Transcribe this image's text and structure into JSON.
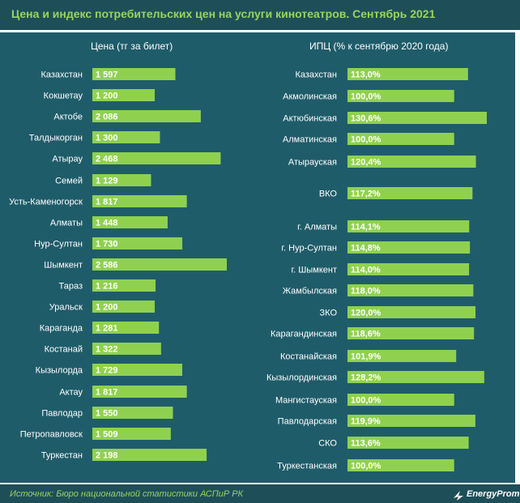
{
  "title": "Цена и индекс потребительских цен на услуги кинотеатров. Сентябрь 2021",
  "source": "Источник: Бюро национальной статистики АСПиР РК",
  "logo_text": "EnergyProm",
  "colors": {
    "background": "#1f5c6a",
    "header": "#1e4f59",
    "bar": "#8fd14f",
    "accent_text": "#9bd45a",
    "text": "#ffffff"
  },
  "chart_data": [
    {
      "type": "bar",
      "orientation": "horizontal",
      "title": "Цена (тг за билет)",
      "categories": [
        "Казахстан",
        "Кокшетау",
        "Актобе",
        "Талдыкорган",
        "Атырау",
        "Семей",
        "Усть-Каменогорск",
        "Алматы",
        "Нур-Султан",
        "Шымкент",
        "Тараз",
        "Уральск",
        "Караганда",
        "Костанай",
        "Кызылорда",
        "Актау",
        "Павлодар",
        "Петропавловск",
        "Туркестан"
      ],
      "values": [
        1597,
        1200,
        2086,
        1300,
        2468,
        1129,
        1817,
        1448,
        1730,
        2586,
        1216,
        1200,
        1281,
        1322,
        1729,
        1817,
        1550,
        1509,
        2198
      ],
      "value_labels": [
        "1 597",
        "1 200",
        "2 086",
        "1 300",
        "2 468",
        "1 129",
        "1 817",
        "1 448",
        "1 730",
        "2 586",
        "1 216",
        "1 200",
        "1 281",
        "1 322",
        "1 729",
        "1 817",
        "1 550",
        "1 509",
        "2 198"
      ],
      "xlim": [
        0,
        2586
      ]
    },
    {
      "type": "bar",
      "orientation": "horizontal",
      "title": "ИПЦ (% к сентябрю 2020 года)",
      "categories": [
        "Казахстан",
        "Акмолинская",
        "Актюбинская",
        "Алматинская",
        "Атырауская",
        "ВКО",
        "г. Алматы",
        "г. Нур-Султан",
        "г. Шымкент",
        "Жамбылская",
        "ЗКО",
        "Карагандинская",
        "Костанайская",
        "Кызылординская",
        "Мангистауская",
        "Павлодарская",
        "СКО",
        "Туркестанская"
      ],
      "values": [
        113.0,
        100.0,
        130.6,
        100.0,
        120.4,
        117.2,
        114.1,
        114.8,
        114.0,
        118.0,
        120.0,
        118.6,
        101.9,
        128.2,
        100.0,
        119.9,
        113.6,
        100.0
      ],
      "value_labels": [
        "113,0%",
        "100,0%",
        "130,6%",
        "100,0%",
        "120,4%",
        "117,2%",
        "114,1%",
        "114,8%",
        "114,0%",
        "118,0%",
        "120,0%",
        "118,6%",
        "101,9%",
        "128,2%",
        "100,0%",
        "119,9%",
        "113,6%",
        "100,0%"
      ],
      "xlim": [
        0,
        130.6
      ]
    }
  ]
}
